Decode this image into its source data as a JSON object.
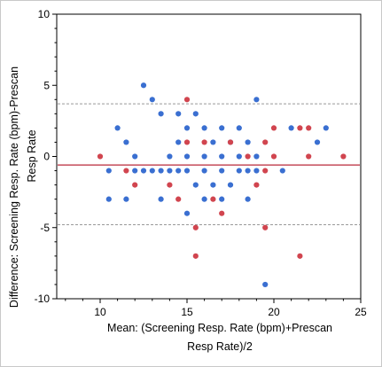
{
  "chart_data": {
    "type": "scatter",
    "title": "",
    "xlabel_lines": [
      "Mean: (Screening Resp. Rate (bpm)+Prescan",
      "Resp Rate)/2"
    ],
    "ylabel_lines": [
      "Difference: Screening Resp. Rate (bpm)-Prescan",
      "Resp Rate"
    ],
    "xlim": [
      7.5,
      25
    ],
    "ylim": [
      -10,
      10
    ],
    "x_ticks": [
      10,
      15,
      20,
      25
    ],
    "y_ticks": [
      -10,
      -5,
      0,
      5,
      10
    ],
    "grid": false,
    "reference_lines": {
      "mean_difference": -0.6,
      "upper_limit": 3.7,
      "lower_limit": -4.8
    },
    "colors": {
      "series_blue": "#3a6fd1",
      "series_red": "#d1454f",
      "mean_line": "#b8283a",
      "limit_lines": "#999999",
      "axis": "#000000"
    },
    "series": [
      {
        "color_key": "series_blue",
        "points": [
          [
            10.5,
            -1
          ],
          [
            10.5,
            -3
          ],
          [
            11,
            2
          ],
          [
            11.5,
            1
          ],
          [
            11.5,
            -3
          ],
          [
            12,
            0
          ],
          [
            12,
            -1
          ],
          [
            12.5,
            5
          ],
          [
            12.5,
            -1
          ],
          [
            13,
            4
          ],
          [
            13,
            -1
          ],
          [
            13.5,
            3
          ],
          [
            13.5,
            -1
          ],
          [
            13.5,
            -3
          ],
          [
            14,
            0
          ],
          [
            14,
            -1
          ],
          [
            14.5,
            3
          ],
          [
            14.5,
            1
          ],
          [
            14.5,
            -1
          ],
          [
            15,
            2
          ],
          [
            15,
            0
          ],
          [
            15,
            -1
          ],
          [
            15,
            -4
          ],
          [
            15.5,
            3
          ],
          [
            15.5,
            -2
          ],
          [
            16,
            2
          ],
          [
            16,
            0
          ],
          [
            16,
            -1
          ],
          [
            16,
            -3
          ],
          [
            16.5,
            1
          ],
          [
            16.5,
            -2
          ],
          [
            17,
            2
          ],
          [
            17,
            0
          ],
          [
            17,
            -1
          ],
          [
            17,
            -3
          ],
          [
            17.5,
            1
          ],
          [
            17.5,
            -2
          ],
          [
            18,
            2
          ],
          [
            18,
            0
          ],
          [
            18,
            -1
          ],
          [
            18.5,
            1
          ],
          [
            18.5,
            -1
          ],
          [
            18.5,
            -3
          ],
          [
            19,
            4
          ],
          [
            19,
            0
          ],
          [
            19,
            -1
          ],
          [
            19.5,
            -9
          ],
          [
            20.5,
            -1
          ],
          [
            21,
            2
          ],
          [
            22.5,
            1
          ],
          [
            23,
            2
          ]
        ]
      },
      {
        "color_key": "series_red",
        "points": [
          [
            10,
            0
          ],
          [
            11.5,
            -1
          ],
          [
            12,
            -2
          ],
          [
            14,
            -2
          ],
          [
            14.5,
            -3
          ],
          [
            15,
            4
          ],
          [
            15,
            1
          ],
          [
            15.5,
            -5
          ],
          [
            15.5,
            -7
          ],
          [
            16,
            1
          ],
          [
            16.5,
            -3
          ],
          [
            17,
            -4
          ],
          [
            17.5,
            1
          ],
          [
            18.5,
            0
          ],
          [
            19,
            -2
          ],
          [
            19.5,
            1
          ],
          [
            19.5,
            -1
          ],
          [
            19.5,
            -5
          ],
          [
            20,
            2
          ],
          [
            20,
            0
          ],
          [
            21.5,
            2
          ],
          [
            21.5,
            -7
          ],
          [
            22,
            2
          ],
          [
            22,
            0
          ],
          [
            24,
            0
          ]
        ]
      }
    ]
  }
}
